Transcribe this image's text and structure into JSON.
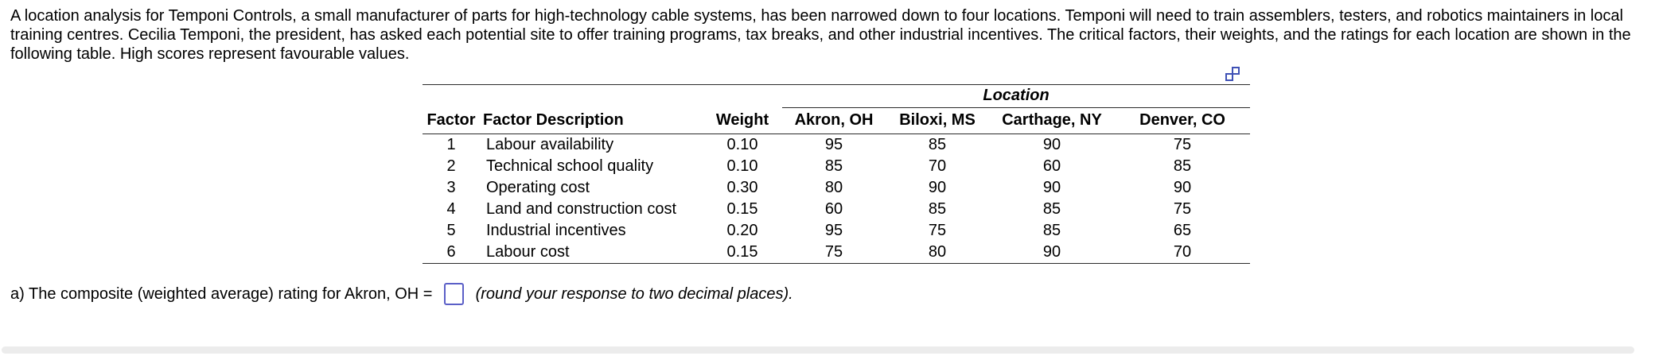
{
  "problem": {
    "text": "A location analysis for Temponi Controls, a small manufacturer of parts for high-technology cable systems, has been narrowed down to four locations. Temponi will need to train assemblers, testers, and robotics maintainers in local training centres. Cecilia Temponi, the president, has asked each potential site to offer training programs, tax breaks, and other industrial incentives. The critical factors, their weights, and the ratings for each location are shown in the following table. High scores represent favourable values."
  },
  "icons": {
    "copy": "overlapping-squares-copy-icon"
  },
  "colors": {
    "accent_icon": "#3f51b5",
    "answer_box_border": "#5b5fc7"
  },
  "table": {
    "location_group_header": "Location",
    "columns": [
      "Factor",
      "Factor Description",
      "Weight",
      "Akron, OH",
      "Biloxi, MS",
      "Carthage, NY",
      "Denver, CO"
    ],
    "rows": [
      {
        "factor": "1",
        "description": "Labour availability",
        "weight": "0.10",
        "akron": "95",
        "biloxi": "85",
        "carthage": "90",
        "denver": "75"
      },
      {
        "factor": "2",
        "description": "Technical school quality",
        "weight": "0.10",
        "akron": "85",
        "biloxi": "70",
        "carthage": "60",
        "denver": "85"
      },
      {
        "factor": "3",
        "description": "Operating cost",
        "weight": "0.30",
        "akron": "80",
        "biloxi": "90",
        "carthage": "90",
        "denver": "90"
      },
      {
        "factor": "4",
        "description": "Land and construction cost",
        "weight": "0.15",
        "akron": "60",
        "biloxi": "85",
        "carthage": "85",
        "denver": "75"
      },
      {
        "factor": "5",
        "description": "Industrial incentives",
        "weight": "0.20",
        "akron": "95",
        "biloxi": "75",
        "carthage": "85",
        "denver": "65"
      },
      {
        "factor": "6",
        "description": "Labour cost",
        "weight": "0.15",
        "akron": "75",
        "biloxi": "80",
        "carthage": "90",
        "denver": "70"
      }
    ]
  },
  "question": {
    "prefix": "a) The composite (weighted average) rating for Akron, OH = ",
    "suffix": " (round your response to two decimal places).",
    "answer": ""
  }
}
